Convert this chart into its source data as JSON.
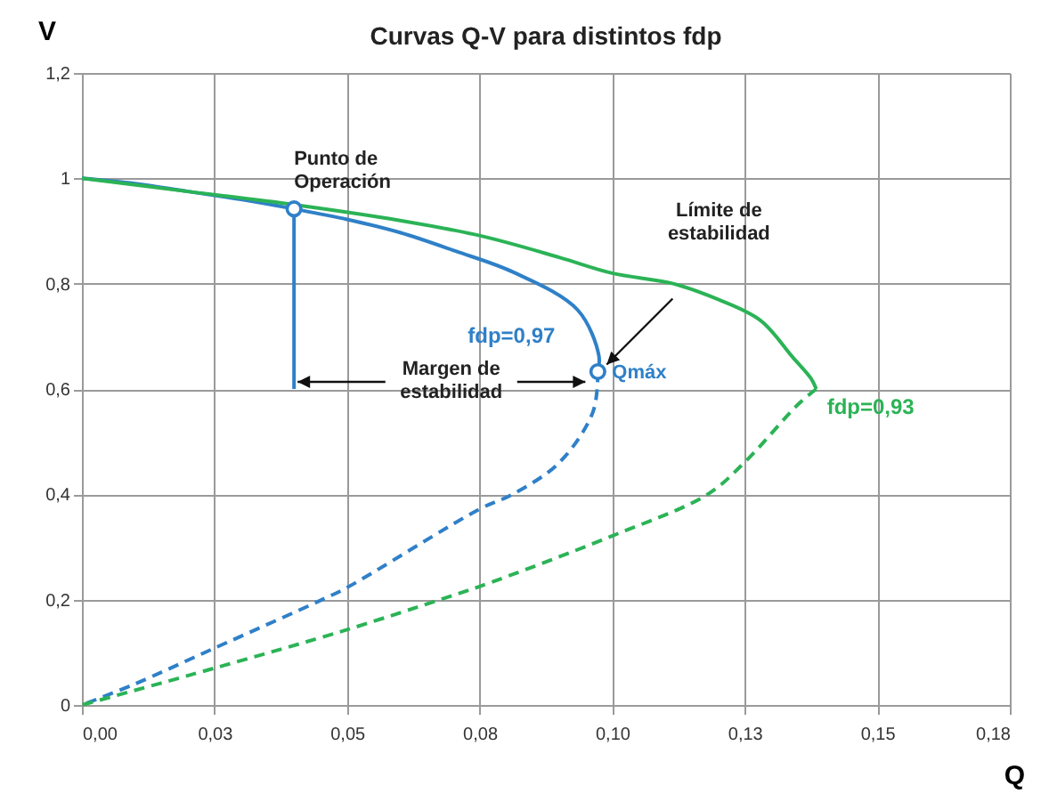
{
  "chart_data": {
    "type": "line",
    "title": "Curvas Q-V para distintos fdp",
    "xlabel": "Q",
    "ylabel": "V",
    "xlim": [
      0,
      0.175
    ],
    "ylim": [
      0,
      1.2
    ],
    "xticks": [
      {
        "value": 0,
        "label": "0,00"
      },
      {
        "value": 0.025,
        "label": "0,03"
      },
      {
        "value": 0.05,
        "label": "0,05"
      },
      {
        "value": 0.075,
        "label": "0,08"
      },
      {
        "value": 0.1,
        "label": "0,10"
      },
      {
        "value": 0.125,
        "label": "0,13"
      },
      {
        "value": 0.15,
        "label": "0,15"
      },
      {
        "value": 0.175,
        "label": "0,18"
      }
    ],
    "yticks": [
      0,
      {
        "value": 0.2,
        "label": "0,2"
      },
      {
        "value": 0.4,
        "label": "0,4"
      },
      {
        "value": 0.6,
        "label": "0,6"
      },
      {
        "value": 0.8,
        "label": "0,8"
      },
      1,
      {
        "value": 1.2,
        "label": "1,2"
      }
    ],
    "grid": true,
    "series": [
      {
        "name": "fdp=0,97",
        "color": "#2f80c8",
        "line_style": "solid",
        "x": [
          0,
          0.01,
          0.02,
          0.03,
          0.04,
          0.05,
          0.06,
          0.0704,
          0.0813,
          0.0935,
          0.0975,
          0.0973
        ],
        "values": [
          1,
          0.99,
          0.975,
          0.96,
          0.942,
          0.922,
          0.897,
          0.862,
          0.822,
          0.75,
          0.663,
          0.633
        ]
      },
      {
        "color": "#2f80c8",
        "line_style": "dashed",
        "x": [
          0.0973,
          0.0964,
          0.09,
          0.0812,
          0.075,
          0.05,
          0.0453,
          0.025,
          0.01,
          0
        ],
        "values": [
          0.633,
          0.557,
          0.46,
          0.4,
          0.372,
          0.223,
          0.2,
          0.108,
          0.04,
          0
        ]
      },
      {
        "name": "fdp=0,93",
        "color": "#2bb356",
        "line_style": "solid",
        "x": [
          0,
          0.02,
          0.04,
          0.06,
          0.0755,
          0.09,
          0.1,
          0.1115,
          0.12,
          0.128,
          0.134,
          0.1375,
          0.1385
        ],
        "values": [
          1,
          0.975,
          0.95,
          0.92,
          0.89,
          0.85,
          0.82,
          0.8,
          0.77,
          0.73,
          0.661,
          0.62,
          0.6
        ]
      },
      {
        "color": "#2bb356",
        "line_style": "dashed",
        "x": [
          0.1385,
          0.1352,
          0.125,
          0.118,
          0.1,
          0.075,
          0.0675,
          0.05,
          0.025,
          0
        ],
        "values": [
          0.6,
          0.572,
          0.461,
          0.4,
          0.321,
          0.225,
          0.2,
          0.143,
          0.07,
          0
        ]
      },
      {
        "color": "#2f80c8",
        "line_style": "solid",
        "x": [
          0.04,
          0.04
        ],
        "values": [
          0.942,
          0.6
        ]
      },
      {
        "type": "scatter",
        "marker": "circle",
        "color": "#2f80c8",
        "x": [
          0.04,
          0.0973
        ],
        "values": [
          0.942,
          0.633
        ]
      }
    ],
    "annotations": [
      "Punto de Operación",
      "Qmáx",
      "Límite de estabilidad",
      {
        "text": "Margen de estabilidad",
        "x": 0.04,
        "y": 0.6
      }
    ]
  }
}
